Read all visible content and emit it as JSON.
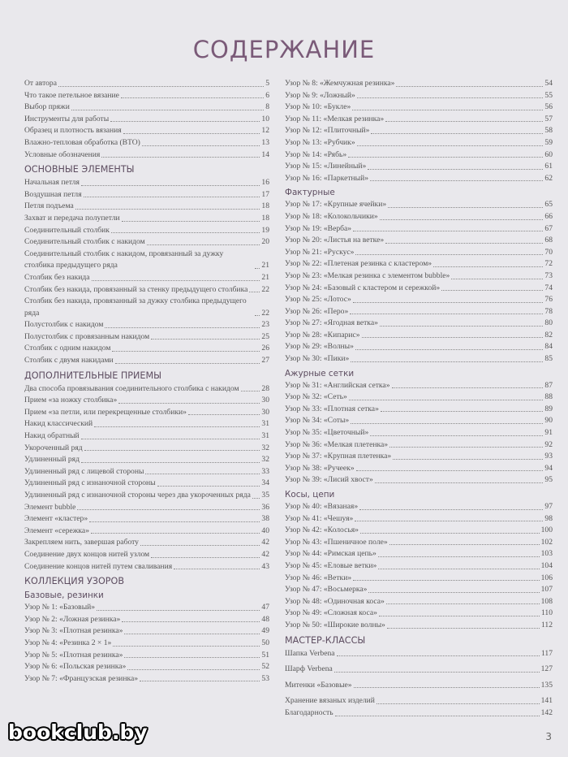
{
  "title": "СОДЕРЖАНИЕ",
  "left_column": [
    {
      "title": "От автора",
      "page": 5
    },
    {
      "title": "Что такое петельное вязание",
      "page": 6
    },
    {
      "title": "Выбор пряжи",
      "page": 8
    },
    {
      "title": "Инструменты для работы",
      "page": 10
    },
    {
      "title": "Образец и плотность вязания",
      "page": 12
    },
    {
      "title": "Влажно-тепловая обработка (ВТО)",
      "page": 13
    },
    {
      "title": "Условные обозначения",
      "page": 14
    },
    {
      "heading": "Основные элементы"
    },
    {
      "title": "Начальная петля",
      "page": 16
    },
    {
      "title": "Воздушная петля",
      "page": 17
    },
    {
      "title": "Петля подъема",
      "page": 18
    },
    {
      "title": "Захват и передача полупетли",
      "page": 18
    },
    {
      "title": "Соединительный столбик",
      "page": 19
    },
    {
      "title": "Соединительный столбик с накидом",
      "page": 20
    },
    {
      "title": "Соединительный столбик с накидом, провязанный за дужку столбика предыдущего ряда",
      "page": 21
    },
    {
      "title": "Столбик без накида",
      "page": 21
    },
    {
      "title": "Столбик без накида, провязанный за стенку предыдущего столбика",
      "page": 22
    },
    {
      "title": "Столбик без накида, провязанный за дужку столбика предыдущего ряда",
      "page": 22
    },
    {
      "title": "Полустолбик с накидом",
      "page": 23
    },
    {
      "title": "Полустолбик с провязанным накидом",
      "page": 25
    },
    {
      "title": "Столбик с одним накидом",
      "page": 26
    },
    {
      "title": "Столбик с двумя накидами",
      "page": 27
    },
    {
      "heading": "Дополнительные приемы"
    },
    {
      "title": "Два способа провязывания соединительного столбика с накидом",
      "page": 28
    },
    {
      "title": "Прием «за ножку столбика»",
      "page": 30
    },
    {
      "title": "Прием «за петли, или перекрещенные столбики»",
      "page": 30
    },
    {
      "title": "Накид классический",
      "page": 31
    },
    {
      "title": "Накид обратный",
      "page": 31
    },
    {
      "title": "Укороченный ряд",
      "page": 32
    },
    {
      "title": "Удлиненный ряд",
      "page": 32
    },
    {
      "title": "Удлиненный ряд с лицевой стороны",
      "page": 33
    },
    {
      "title": "Удлиненный ряд с изнаночной стороны",
      "page": 34
    },
    {
      "title": "Удлиненный ряд с изнаночной стороны через два укороченных ряда",
      "page": 35
    },
    {
      "title": "Элемент bubble",
      "page": 36
    },
    {
      "title": "Элемент «кластер»",
      "page": 38
    },
    {
      "title": "Элемент «сережка»",
      "page": 40
    },
    {
      "title": "Закрепляем нить, завершая работу",
      "page": 42
    },
    {
      "title": "Соединение двух концов нитей узлом",
      "page": 42
    },
    {
      "title": "Соединение концов нитей путем сваливания",
      "page": 43
    },
    {
      "heading": "Коллекция узоров"
    },
    {
      "subheading": "Базовые, резинки"
    },
    {
      "title": "Узор № 1: «Базовый»",
      "page": 47
    },
    {
      "title": "Узор № 2: «Ложная резинка»",
      "page": 48
    },
    {
      "title": "Узор № 3: «Плотная резинка»",
      "page": 49
    },
    {
      "title": "Узор № 4: «Резинка 2 × 1»",
      "page": 50
    },
    {
      "title": "Узор № 5: «Плотная резинка»",
      "page": 51
    },
    {
      "title": "Узор № 6: «Польская резинка»",
      "page": 52
    },
    {
      "title": "Узор № 7: «Французская резинка»",
      "page": 53
    }
  ],
  "right_column": [
    {
      "title": "Узор № 8: «Жемчужная резинка»",
      "page": 54
    },
    {
      "title": "Узор № 9: «Ложный»",
      "page": 55
    },
    {
      "title": "Узор № 10: «Букле»",
      "page": 56
    },
    {
      "title": "Узор № 11: «Мелкая резинка»",
      "page": 57
    },
    {
      "title": "Узор № 12: «Плиточный»",
      "page": 58
    },
    {
      "title": "Узор № 13: «Рубчик»",
      "page": 59
    },
    {
      "title": "Узор № 14: «Рябь»",
      "page": 60
    },
    {
      "title": "Узор № 15: «Линейный»",
      "page": 61
    },
    {
      "title": "Узор № 16: «Паркетный»",
      "page": 62
    },
    {
      "subheading": "Фактурные"
    },
    {
      "title": "Узор № 17: «Крупные ячейки»",
      "page": 65
    },
    {
      "title": "Узор № 18: «Колокольчики»",
      "page": 66
    },
    {
      "title": "Узор № 19: «Верба»",
      "page": 67
    },
    {
      "title": "Узор № 20: «Листья на ветке»",
      "page": 68
    },
    {
      "title": "Узор № 21: «Рускус»",
      "page": 70
    },
    {
      "title": "Узор № 22: «Плетеная резинка с кластером»",
      "page": 72
    },
    {
      "title": "Узор № 23: «Мелкая резинка с элементом bubble»",
      "page": 73
    },
    {
      "title": "Узор № 24: «Базовый с кластером и сережкой»",
      "page": 74
    },
    {
      "title": "Узор № 25: «Лотос»",
      "page": 76
    },
    {
      "title": "Узор № 26: «Перо»",
      "page": 78
    },
    {
      "title": "Узор № 27: «Ягодная ветка»",
      "page": 80
    },
    {
      "title": "Узор № 28: «Кипарис»",
      "page": 82
    },
    {
      "title": "Узор № 29: «Волны»",
      "page": 84
    },
    {
      "title": "Узор № 30: «Пики»",
      "page": 85
    },
    {
      "subheading": "Ажурные сетки"
    },
    {
      "title": "Узор № 31: «Английская сетка»",
      "page": 87
    },
    {
      "title": "Узор № 32: «Сеть»",
      "page": 88
    },
    {
      "title": "Узор № 33: «Плотная сетка»",
      "page": 89
    },
    {
      "title": "Узор № 34: «Соты»",
      "page": 90
    },
    {
      "title": "Узор № 35: «Цветочный»",
      "page": 91
    },
    {
      "title": "Узор № 36: «Мелкая плетенка»",
      "page": 92
    },
    {
      "title": "Узор № 37: «Крупная плетенка»",
      "page": 93
    },
    {
      "title": "Узор № 38: «Ручеек»",
      "page": 94
    },
    {
      "title": "Узор № 39: «Лисий хвост»",
      "page": 95
    },
    {
      "subheading": "Косы, цепи"
    },
    {
      "title": "Узор № 40: «Вязаная»",
      "page": 97
    },
    {
      "title": "Узор № 41: «Чешуя»",
      "page": 98
    },
    {
      "title": "Узор № 42: «Колосья»",
      "page": 100
    },
    {
      "title": "Узор № 43: «Пшеничное поле»",
      "page": 102
    },
    {
      "title": "Узор № 44: «Римская цепь»",
      "page": 103
    },
    {
      "title": "Узор № 45: «Еловые ветки»",
      "page": 104
    },
    {
      "title": "Узор № 46: «Ветки»",
      "page": 106
    },
    {
      "title": "Узор № 47: «Восьмерка»",
      "page": 107
    },
    {
      "title": "Узор № 48: «Одиночная коса»",
      "page": 108
    },
    {
      "title": "Узор № 49: «Сложная коса»",
      "page": 110
    },
    {
      "title": "Узор № 50: «Широкие волны»",
      "page": 112
    },
    {
      "heading": "Мастер-классы"
    },
    {
      "title": "Шапка Verbena",
      "page": 117
    },
    {
      "title": "Шарф Verbena",
      "page": 127
    },
    {
      "title": "Митенки «Базовые»",
      "page": 135
    },
    {
      "title": "Хранение вязаных изделий",
      "page": 141
    },
    {
      "title": "Благодарность",
      "page": 142
    }
  ],
  "page_number": 3,
  "watermark": "bookclub.by"
}
